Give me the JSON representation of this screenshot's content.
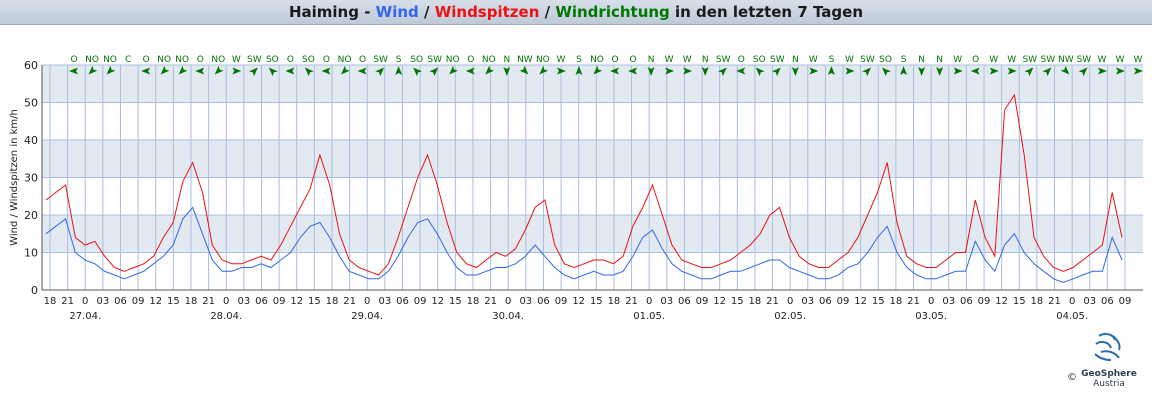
{
  "title": {
    "part1": "Haiming - ",
    "wind": "Wind",
    "sep1": " / ",
    "windspitzen": "Windspitzen",
    "sep2": " / ",
    "windrichtung": "Windrichtung",
    "part_end": " in den letzten 7 Tagen"
  },
  "colors": {
    "wind": "#3366ee",
    "windspitzen": "#ee1111",
    "windrichtung": "#007700",
    "band": "#e3e9f1",
    "grid": "#a9bfe0",
    "axis": "#555555"
  },
  "logo": {
    "name": "GeoSphere",
    "sub": "Austria",
    "copyright": "©"
  },
  "chart_data": {
    "type": "line",
    "ylabel": "Wind / Windspitzen in km/h",
    "ylim": [
      0,
      60
    ],
    "yticks": [
      0,
      10,
      20,
      30,
      40,
      50,
      60
    ],
    "grid": true,
    "x_hour_ticks": [
      "18",
      "21",
      "0",
      "03",
      "06",
      "09",
      "12",
      "15",
      "18",
      "21",
      "0",
      "03",
      "06",
      "09",
      "12",
      "15",
      "18",
      "21",
      "0",
      "03",
      "06",
      "09",
      "12",
      "15",
      "18",
      "21",
      "0",
      "03",
      "06",
      "09",
      "12",
      "15",
      "18",
      "21",
      "0",
      "03",
      "06",
      "09",
      "12",
      "15",
      "18",
      "21",
      "0",
      "03",
      "06",
      "09",
      "12",
      "15",
      "18",
      "21",
      "0",
      "03",
      "06",
      "09",
      "12",
      "15",
      "18",
      "21",
      "0",
      "03",
      "06",
      "09"
    ],
    "x_date_labels": [
      {
        "label": "27.04.",
        "tick_index": 2
      },
      {
        "label": "28.04.",
        "tick_index": 10
      },
      {
        "label": "29.04.",
        "tick_index": 18
      },
      {
        "label": "30.04.",
        "tick_index": 26
      },
      {
        "label": "01.05.",
        "tick_index": 34
      },
      {
        "label": "02.05.",
        "tick_index": 42
      },
      {
        "label": "03.05.",
        "tick_index": 50
      },
      {
        "label": "04.05.",
        "tick_index": 58
      }
    ],
    "direction_labels": [
      "O",
      "NO",
      "NO",
      "C",
      "O",
      "NO",
      "NO",
      "O",
      "NO",
      "W",
      "SW",
      "SO",
      "O",
      "SO",
      "O",
      "NO",
      "O",
      "SW",
      "S",
      "SO",
      "SW",
      "NO",
      "O",
      "NO",
      "N",
      "NW",
      "NO",
      "W",
      "S",
      "NO",
      "O",
      "O",
      "N",
      "W",
      "W",
      "N",
      "SW",
      "O",
      "SO",
      "SW",
      "N",
      "W",
      "S",
      "W",
      "SW",
      "SO",
      "S",
      "N",
      "N",
      "W",
      "O",
      "W",
      "W",
      "SW",
      "SW",
      "NW",
      "SW",
      "W",
      "W",
      "W"
    ],
    "series": [
      {
        "name": "Wind",
        "values": [
          15,
          17,
          19,
          10,
          8,
          7,
          5,
          4,
          3,
          4,
          5,
          7,
          9,
          12,
          19,
          22,
          15,
          8,
          5,
          5,
          6,
          6,
          7,
          6,
          8,
          10,
          14,
          17,
          18,
          14,
          9,
          5,
          4,
          3,
          3,
          5,
          9,
          14,
          18,
          19,
          15,
          10,
          6,
          4,
          4,
          5,
          6,
          6,
          7,
          9,
          12,
          9,
          6,
          4,
          3,
          4,
          5,
          4,
          4,
          5,
          9,
          14,
          16,
          11,
          7,
          5,
          4,
          3,
          3,
          4,
          5,
          5,
          6,
          7,
          8,
          8,
          6,
          5,
          4,
          3,
          3,
          4,
          6,
          7,
          10,
          14,
          17,
          10,
          6,
          4,
          3,
          3,
          4,
          5,
          5,
          13,
          8,
          5,
          12,
          15,
          10,
          7,
          5,
          3,
          2,
          3,
          4,
          5,
          5,
          14,
          8
        ]
      },
      {
        "name": "Windspitzen",
        "values": [
          24,
          26,
          28,
          14,
          12,
          13,
          9,
          6,
          5,
          6,
          7,
          9,
          14,
          18,
          29,
          34,
          26,
          12,
          8,
          7,
          7,
          8,
          9,
          8,
          12,
          17,
          22,
          27,
          36,
          28,
          15,
          8,
          6,
          5,
          4,
          7,
          14,
          22,
          30,
          36,
          28,
          18,
          10,
          7,
          6,
          8,
          10,
          9,
          11,
          16,
          22,
          24,
          12,
          7,
          6,
          7,
          8,
          8,
          7,
          9,
          17,
          22,
          28,
          20,
          12,
          8,
          7,
          6,
          6,
          7,
          8,
          10,
          12,
          15,
          20,
          22,
          14,
          9,
          7,
          6,
          6,
          8,
          10,
          14,
          20,
          26,
          34,
          18,
          9,
          7,
          6,
          6,
          8,
          10,
          10,
          24,
          14,
          9,
          48,
          52,
          36,
          14,
          9,
          6,
          5,
          6,
          8,
          10,
          12,
          26,
          14
        ]
      }
    ]
  }
}
